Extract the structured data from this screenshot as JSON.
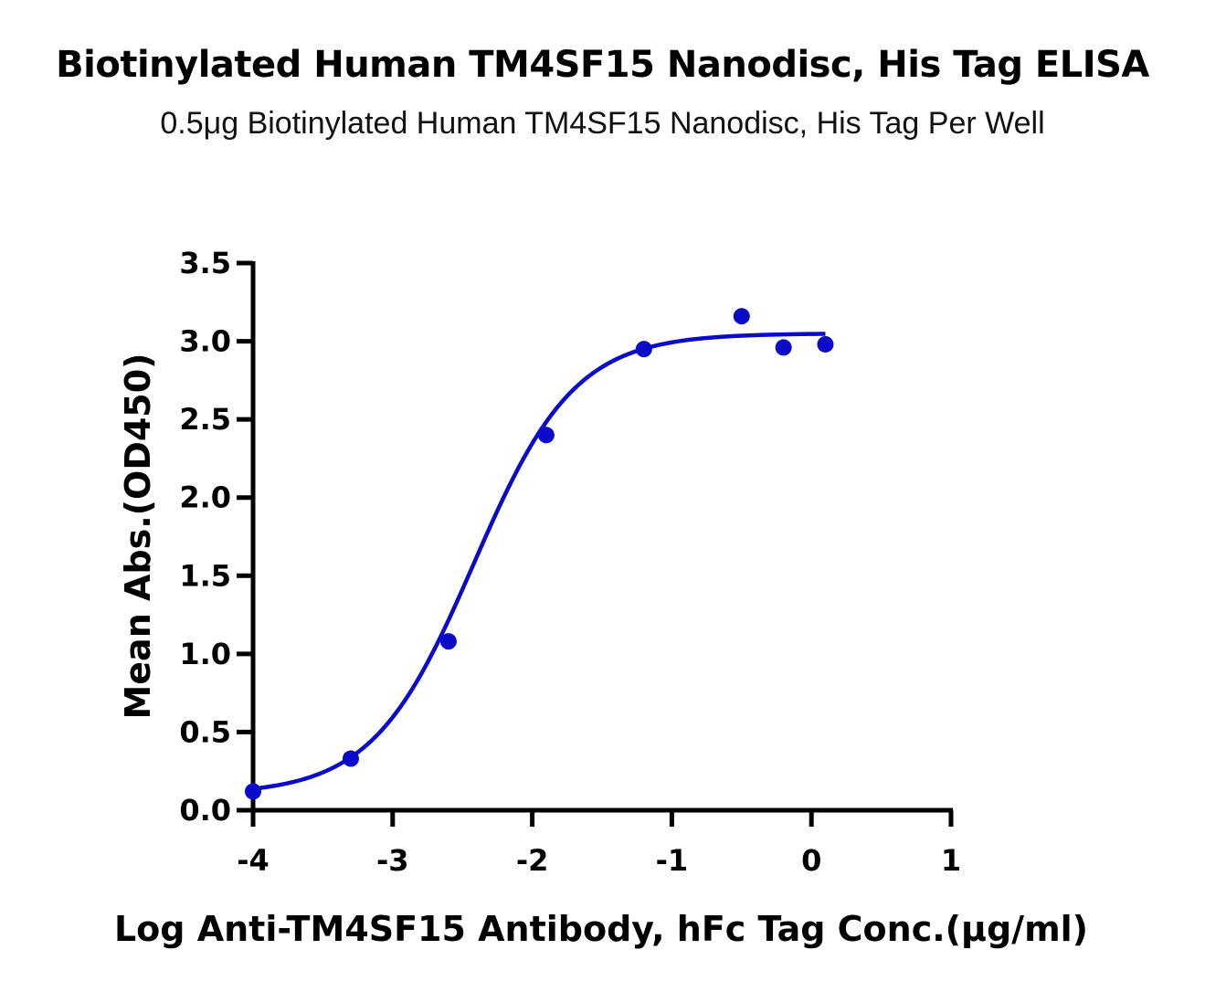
{
  "chart_data": {
    "type": "scatter",
    "title": "Biotinylated Human TM4SF15 Nanodisc, His Tag ELISA",
    "subtitle": "0.5μg Biotinylated Human TM4SF15 Nanodisc, His Tag Per Well",
    "xlabel": "Log  Anti-TM4SF15 Antibody, hFc Tag Conc.(μg/ml)",
    "ylabel": "Mean Abs.(OD450)",
    "xlim": [
      -4,
      1
    ],
    "ylim": [
      0,
      3.5
    ],
    "xticks": [
      -4,
      -3,
      -2,
      -1,
      0,
      1
    ],
    "xtick_labels": [
      "-4",
      "-3",
      "-2",
      "-1",
      "0",
      "1"
    ],
    "yticks": [
      0,
      0.5,
      1,
      1.5,
      2,
      2.5,
      3,
      3.5
    ],
    "ytick_labels": [
      "0.0",
      "0.5",
      "1.0",
      "1.5",
      "2.0",
      "2.5",
      "3.0",
      "3.5"
    ],
    "grid": false,
    "color": "#0a0ac8",
    "series": [
      {
        "points": [
          {
            "x": -4.0,
            "y": 0.12
          },
          {
            "x": -3.3,
            "y": 0.33
          },
          {
            "x": -2.6,
            "y": 1.08
          },
          {
            "x": -1.9,
            "y": 2.4
          },
          {
            "x": -1.2,
            "y": 2.95
          },
          {
            "x": -0.5,
            "y": 3.16
          },
          {
            "x": -0.2,
            "y": 2.96
          },
          {
            "x": 0.1,
            "y": 2.98
          }
        ],
        "fit": {
          "model": "4PL",
          "bottom": 0.1,
          "top": 3.05,
          "logEC50": -2.42,
          "hillslope": 1.2
        }
      }
    ]
  }
}
